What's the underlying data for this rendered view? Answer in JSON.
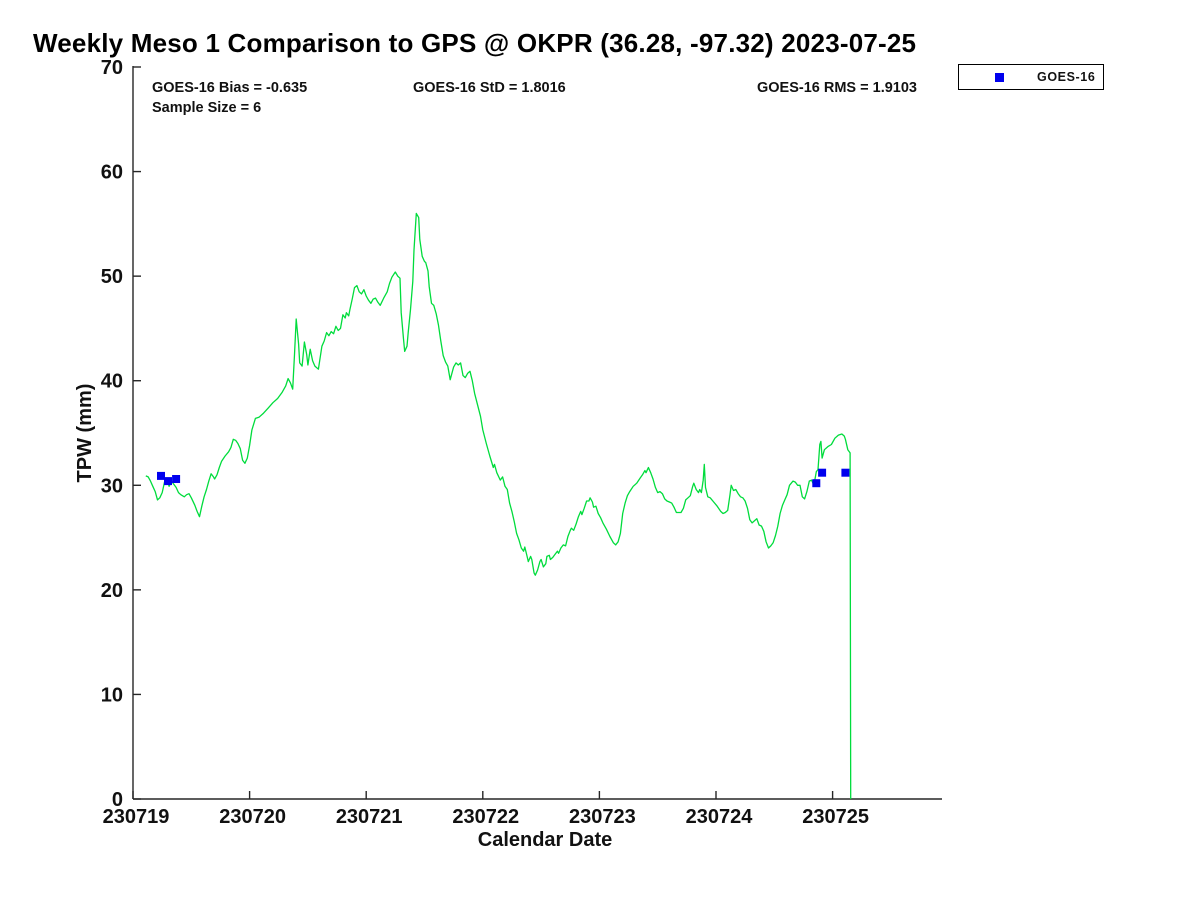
{
  "title": "Weekly Meso 1 Comparison to GPS @ OKPR (36.28, -97.32) 2023-07-25",
  "stats": {
    "bias": "GOES-16 Bias = -0.635",
    "std": "GOES-16 StD = 1.8016",
    "rms": "GOES-16 RMS = 1.9103",
    "sample_size": "Sample Size = 6"
  },
  "legend": {
    "label": "GOES-16",
    "marker_color": "#0000ee",
    "position": "top-right-outside"
  },
  "colors": {
    "line_green": "#00dc3c",
    "marker_blue": "#0000ee",
    "axis": "#262626",
    "text": "#111111"
  },
  "chart_data": {
    "type": "line",
    "title": "Weekly Meso 1 Comparison to GPS @ OKPR (36.28, -97.32) 2023-07-25",
    "xlabel": "Calendar Date",
    "ylabel": "TPW (mm)",
    "grid": false,
    "ylim": [
      0,
      70
    ],
    "y_ticks": [
      0,
      10,
      20,
      30,
      40,
      50,
      60,
      70
    ],
    "x_tick_labels": [
      "230719",
      "230720",
      "230721",
      "230722",
      "230723",
      "230724",
      "230725"
    ],
    "x_days_range": [
      0,
      6.94
    ],
    "legend_entries": [
      "GOES-16"
    ],
    "series": [
      {
        "name": "GPS TPW trace (green line)",
        "type": "line",
        "color": "#00dc3c",
        "x_unit": "days since 230719",
        "points": [
          [
            0.11,
            30.9
          ],
          [
            0.13,
            30.8
          ],
          [
            0.15,
            30.4
          ],
          [
            0.17,
            29.9
          ],
          [
            0.19,
            29.4
          ],
          [
            0.21,
            28.6
          ],
          [
            0.23,
            28.8
          ],
          [
            0.25,
            29.3
          ],
          [
            0.27,
            30.3
          ],
          [
            0.29,
            30.6
          ],
          [
            0.31,
            29.9
          ],
          [
            0.33,
            30.4
          ],
          [
            0.35,
            30.1
          ],
          [
            0.37,
            29.8
          ],
          [
            0.39,
            29.3
          ],
          [
            0.41,
            29.1
          ],
          [
            0.44,
            28.9
          ],
          [
            0.46,
            29.1
          ],
          [
            0.48,
            29.2
          ],
          [
            0.5,
            28.8
          ],
          [
            0.53,
            28.1
          ],
          [
            0.55,
            27.5
          ],
          [
            0.57,
            27.0
          ],
          [
            0.59,
            28.0
          ],
          [
            0.61,
            28.9
          ],
          [
            0.63,
            29.6
          ],
          [
            0.65,
            30.4
          ],
          [
            0.67,
            31.1
          ],
          [
            0.69,
            30.8
          ],
          [
            0.7,
            30.6
          ],
          [
            0.72,
            31.0
          ],
          [
            0.74,
            31.7
          ],
          [
            0.76,
            32.3
          ],
          [
            0.79,
            32.8
          ],
          [
            0.82,
            33.2
          ],
          [
            0.84,
            33.6
          ],
          [
            0.86,
            34.4
          ],
          [
            0.88,
            34.3
          ],
          [
            0.9,
            34.0
          ],
          [
            0.92,
            33.5
          ],
          [
            0.94,
            32.4
          ],
          [
            0.96,
            32.1
          ],
          [
            0.98,
            32.6
          ],
          [
            1.0,
            33.8
          ],
          [
            1.02,
            35.3
          ],
          [
            1.05,
            36.4
          ],
          [
            1.08,
            36.5
          ],
          [
            1.12,
            36.9
          ],
          [
            1.16,
            37.4
          ],
          [
            1.2,
            37.9
          ],
          [
            1.24,
            38.3
          ],
          [
            1.28,
            38.9
          ],
          [
            1.31,
            39.5
          ],
          [
            1.33,
            40.2
          ],
          [
            1.35,
            39.8
          ],
          [
            1.37,
            39.2
          ],
          [
            1.385,
            42.5
          ],
          [
            1.4,
            45.9
          ],
          [
            1.42,
            43.5
          ],
          [
            1.43,
            41.7
          ],
          [
            1.45,
            41.4
          ],
          [
            1.47,
            43.7
          ],
          [
            1.49,
            42.5
          ],
          [
            1.5,
            41.5
          ],
          [
            1.52,
            43.0
          ],
          [
            1.54,
            41.9
          ],
          [
            1.56,
            41.4
          ],
          [
            1.59,
            41.1
          ],
          [
            1.62,
            43.3
          ],
          [
            1.64,
            43.8
          ],
          [
            1.66,
            44.6
          ],
          [
            1.68,
            44.3
          ],
          [
            1.7,
            44.7
          ],
          [
            1.72,
            44.5
          ],
          [
            1.74,
            45.2
          ],
          [
            1.76,
            44.8
          ],
          [
            1.78,
            45.0
          ],
          [
            1.8,
            46.3
          ],
          [
            1.82,
            46.0
          ],
          [
            1.83,
            46.5
          ],
          [
            1.85,
            46.2
          ],
          [
            1.86,
            46.8
          ],
          [
            1.88,
            47.8
          ],
          [
            1.9,
            48.9
          ],
          [
            1.92,
            49.1
          ],
          [
            1.94,
            48.5
          ],
          [
            1.96,
            48.3
          ],
          [
            1.98,
            48.7
          ],
          [
            2.0,
            48.1
          ],
          [
            2.02,
            47.7
          ],
          [
            2.04,
            47.4
          ],
          [
            2.06,
            47.8
          ],
          [
            2.08,
            47.9
          ],
          [
            2.1,
            47.5
          ],
          [
            2.12,
            47.2
          ],
          [
            2.15,
            47.9
          ],
          [
            2.18,
            48.5
          ],
          [
            2.2,
            49.3
          ],
          [
            2.22,
            49.9
          ],
          [
            2.25,
            50.4
          ],
          [
            2.27,
            50.0
          ],
          [
            2.29,
            49.8
          ],
          [
            2.3,
            46.5
          ],
          [
            2.32,
            44.0
          ],
          [
            2.33,
            42.8
          ],
          [
            2.35,
            43.3
          ],
          [
            2.36,
            44.6
          ],
          [
            2.38,
            46.8
          ],
          [
            2.4,
            49.5
          ],
          [
            2.41,
            52.5
          ],
          [
            2.43,
            56.0
          ],
          [
            2.45,
            55.6
          ],
          [
            2.46,
            53.5
          ],
          [
            2.48,
            51.9
          ],
          [
            2.5,
            51.4
          ],
          [
            2.51,
            51.3
          ],
          [
            2.53,
            50.5
          ],
          [
            2.54,
            49.0
          ],
          [
            2.56,
            47.4
          ],
          [
            2.58,
            47.2
          ],
          [
            2.6,
            46.4
          ],
          [
            2.62,
            45.3
          ],
          [
            2.64,
            43.8
          ],
          [
            2.66,
            42.4
          ],
          [
            2.68,
            41.8
          ],
          [
            2.7,
            41.4
          ],
          [
            2.72,
            40.1
          ],
          [
            2.75,
            41.3
          ],
          [
            2.77,
            41.7
          ],
          [
            2.79,
            41.5
          ],
          [
            2.81,
            41.7
          ],
          [
            2.83,
            40.5
          ],
          [
            2.85,
            40.3
          ],
          [
            2.87,
            40.7
          ],
          [
            2.89,
            40.9
          ],
          [
            2.91,
            40.0
          ],
          [
            2.93,
            38.8
          ],
          [
            2.95,
            37.9
          ],
          [
            2.98,
            36.6
          ],
          [
            3.0,
            35.3
          ],
          [
            3.03,
            34.0
          ],
          [
            3.06,
            32.8
          ],
          [
            3.09,
            31.7
          ],
          [
            3.1,
            32.0
          ],
          [
            3.12,
            31.2
          ],
          [
            3.15,
            30.5
          ],
          [
            3.17,
            30.8
          ],
          [
            3.19,
            29.9
          ],
          [
            3.21,
            29.6
          ],
          [
            3.23,
            28.3
          ],
          [
            3.25,
            27.5
          ],
          [
            3.27,
            26.5
          ],
          [
            3.29,
            25.4
          ],
          [
            3.31,
            24.8
          ],
          [
            3.33,
            24.0
          ],
          [
            3.35,
            23.7
          ],
          [
            3.36,
            24.1
          ],
          [
            3.38,
            23.2
          ],
          [
            3.39,
            22.7
          ],
          [
            3.41,
            23.2
          ],
          [
            3.42,
            22.9
          ],
          [
            3.44,
            21.6
          ],
          [
            3.45,
            21.4
          ],
          [
            3.47,
            21.9
          ],
          [
            3.49,
            22.7
          ],
          [
            3.5,
            22.9
          ],
          [
            3.52,
            22.2
          ],
          [
            3.54,
            22.5
          ],
          [
            3.55,
            23.2
          ],
          [
            3.57,
            23.3
          ],
          [
            3.58,
            22.9
          ],
          [
            3.6,
            23.1
          ],
          [
            3.62,
            23.4
          ],
          [
            3.64,
            23.7
          ],
          [
            3.65,
            23.5
          ],
          [
            3.67,
            24.0
          ],
          [
            3.69,
            24.3
          ],
          [
            3.71,
            24.2
          ],
          [
            3.73,
            25.1
          ],
          [
            3.75,
            25.7
          ],
          [
            3.76,
            25.9
          ],
          [
            3.78,
            25.7
          ],
          [
            3.8,
            26.3
          ],
          [
            3.82,
            27.0
          ],
          [
            3.84,
            27.5
          ],
          [
            3.85,
            27.2
          ],
          [
            3.87,
            27.8
          ],
          [
            3.89,
            28.5
          ],
          [
            3.91,
            28.5
          ],
          [
            3.92,
            28.8
          ],
          [
            3.94,
            28.4
          ],
          [
            3.95,
            27.9
          ],
          [
            3.97,
            28.0
          ],
          [
            3.99,
            27.3
          ],
          [
            4.01,
            26.9
          ],
          [
            4.03,
            26.4
          ],
          [
            4.06,
            25.8
          ],
          [
            4.09,
            25.1
          ],
          [
            4.12,
            24.5
          ],
          [
            4.14,
            24.3
          ],
          [
            4.16,
            24.6
          ],
          [
            4.18,
            25.4
          ],
          [
            4.2,
            27.3
          ],
          [
            4.22,
            28.3
          ],
          [
            4.24,
            29.0
          ],
          [
            4.26,
            29.4
          ],
          [
            4.29,
            29.9
          ],
          [
            4.32,
            30.2
          ],
          [
            4.35,
            30.7
          ],
          [
            4.37,
            31.0
          ],
          [
            4.39,
            31.4
          ],
          [
            4.4,
            31.2
          ],
          [
            4.42,
            31.7
          ],
          [
            4.44,
            31.2
          ],
          [
            4.46,
            30.6
          ],
          [
            4.48,
            29.8
          ],
          [
            4.5,
            29.3
          ],
          [
            4.52,
            29.4
          ],
          [
            4.54,
            29.2
          ],
          [
            4.56,
            28.7
          ],
          [
            4.58,
            28.5
          ],
          [
            4.6,
            28.4
          ],
          [
            4.62,
            28.3
          ],
          [
            4.64,
            27.9
          ],
          [
            4.66,
            27.4
          ],
          [
            4.68,
            27.4
          ],
          [
            4.7,
            27.4
          ],
          [
            4.72,
            27.8
          ],
          [
            4.74,
            28.6
          ],
          [
            4.76,
            28.8
          ],
          [
            4.78,
            29.0
          ],
          [
            4.8,
            29.9
          ],
          [
            4.81,
            30.2
          ],
          [
            4.83,
            29.6
          ],
          [
            4.85,
            29.3
          ],
          [
            4.86,
            29.6
          ],
          [
            4.875,
            29.3
          ],
          [
            4.89,
            30.5
          ],
          [
            4.9,
            32.0
          ],
          [
            4.91,
            29.8
          ],
          [
            4.93,
            28.9
          ],
          [
            4.95,
            28.8
          ],
          [
            4.98,
            28.4
          ],
          [
            5.01,
            28.0
          ],
          [
            5.04,
            27.5
          ],
          [
            5.06,
            27.3
          ],
          [
            5.08,
            27.4
          ],
          [
            5.1,
            27.6
          ],
          [
            5.12,
            29.1
          ],
          [
            5.13,
            30.0
          ],
          [
            5.15,
            29.5
          ],
          [
            5.17,
            29.6
          ],
          [
            5.19,
            29.2
          ],
          [
            5.21,
            28.9
          ],
          [
            5.23,
            28.8
          ],
          [
            5.25,
            28.5
          ],
          [
            5.27,
            27.8
          ],
          [
            5.29,
            26.7
          ],
          [
            5.31,
            26.4
          ],
          [
            5.33,
            26.6
          ],
          [
            5.35,
            26.8
          ],
          [
            5.37,
            26.2
          ],
          [
            5.39,
            26.1
          ],
          [
            5.41,
            25.6
          ],
          [
            5.43,
            24.6
          ],
          [
            5.45,
            24.0
          ],
          [
            5.47,
            24.2
          ],
          [
            5.49,
            24.5
          ],
          [
            5.51,
            25.2
          ],
          [
            5.53,
            26.1
          ],
          [
            5.55,
            27.3
          ],
          [
            5.57,
            28.1
          ],
          [
            5.59,
            28.6
          ],
          [
            5.61,
            29.1
          ],
          [
            5.63,
            30.0
          ],
          [
            5.66,
            30.4
          ],
          [
            5.68,
            30.3
          ],
          [
            5.7,
            30.0
          ],
          [
            5.72,
            30.0
          ],
          [
            5.74,
            28.9
          ],
          [
            5.76,
            28.7
          ],
          [
            5.78,
            29.4
          ],
          [
            5.8,
            30.4
          ],
          [
            5.82,
            30.5
          ],
          [
            5.84,
            30.0
          ],
          [
            5.86,
            31.3
          ],
          [
            5.875,
            31.5
          ],
          [
            5.89,
            33.9
          ],
          [
            5.9,
            34.2
          ],
          [
            5.91,
            32.6
          ],
          [
            5.93,
            33.4
          ],
          [
            5.96,
            33.7
          ],
          [
            5.99,
            33.9
          ],
          [
            6.02,
            34.5
          ],
          [
            6.05,
            34.8
          ],
          [
            6.08,
            34.9
          ],
          [
            6.1,
            34.7
          ],
          [
            6.11,
            34.4
          ],
          [
            6.13,
            33.4
          ],
          [
            6.15,
            33.1
          ],
          [
            6.155,
            0.0
          ]
        ]
      },
      {
        "name": "GOES-16",
        "type": "scatter",
        "marker": "square",
        "color": "#0000ee",
        "x_unit": "days since 230719",
        "points": [
          [
            0.24,
            30.9
          ],
          [
            0.3,
            30.4
          ],
          [
            0.37,
            30.6
          ],
          [
            5.86,
            30.2
          ],
          [
            5.91,
            31.2
          ],
          [
            6.11,
            31.2
          ]
        ]
      }
    ]
  }
}
